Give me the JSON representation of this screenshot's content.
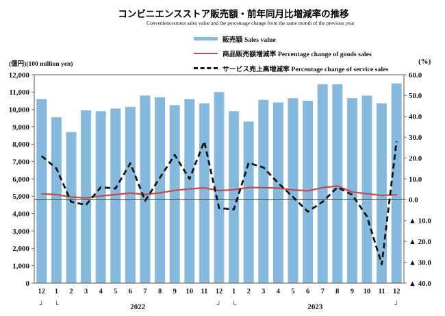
{
  "chart_data": {
    "type": "combo-bar-line",
    "title": "コンビニエンスストア販売額・前年同月比増減率の推移",
    "subtitle": "Conveniencestores sales value and the percentage change from the same month of the previous year",
    "categories": [
      "12",
      "1",
      "2",
      "3",
      "4",
      "5",
      "6",
      "7",
      "8",
      "9",
      "10",
      "11",
      "12",
      "1",
      "2",
      "3",
      "4",
      "5",
      "6",
      "7",
      "8",
      "9",
      "10",
      "11",
      "12"
    ],
    "series": [
      {
        "name": "販売額 Sales value",
        "type": "bar",
        "axis": "left",
        "unit": "100 million yen",
        "color": "#85b9dd",
        "values": [
          10600,
          9550,
          8700,
          9950,
          9900,
          10050,
          10150,
          10800,
          10700,
          10250,
          10600,
          10350,
          11000,
          9900,
          9300,
          10550,
          10400,
          10650,
          10500,
          11450,
          11450,
          10650,
          10800,
          10350,
          11500
        ]
      },
      {
        "name": "商品販売額増減率 Percentage change of goods sales",
        "type": "line",
        "axis": "right",
        "unit": "%",
        "color": "#c0504d",
        "values": [
          2.8,
          2.5,
          1.3,
          0.9,
          1.8,
          2.5,
          3.2,
          2.5,
          3.3,
          4.5,
          5.2,
          5.7,
          4.4,
          4.8,
          5.9,
          5.8,
          5.6,
          4.7,
          4.3,
          5.8,
          6.6,
          3.7,
          2.9,
          2.1,
          2.4
        ]
      },
      {
        "name": "サービス売上高増減率 Percentage change of service sales",
        "type": "dashed-line",
        "axis": "right",
        "unit": "%",
        "color": "#141414",
        "values": [
          21,
          15,
          -1,
          -2.5,
          6,
          5.4,
          17.5,
          -0.5,
          10.6,
          21.5,
          10,
          28,
          -4,
          -4.6,
          17.7,
          15.5,
          8,
          1.3,
          -5.7,
          -1,
          6,
          2.4,
          -8,
          -31,
          28
        ]
      }
    ],
    "left_axis": {
      "label": "(億円)(100 million yen)",
      "min": 0,
      "max": 12000,
      "step": 1000,
      "tick_labels": [
        "0",
        "1,000",
        "2,000",
        "3,000",
        "4,000",
        "5,000",
        "6,000",
        "7,000",
        "8,000",
        "9,000",
        "10,000",
        "11,000",
        "12,000"
      ]
    },
    "right_axis": {
      "label": "(%)",
      "min": -40,
      "max": 60,
      "step": 10,
      "ticks": [
        {
          "v": 60,
          "label": "60.0"
        },
        {
          "v": 50,
          "label": "50.0"
        },
        {
          "v": 40,
          "label": "40.0"
        },
        {
          "v": 30,
          "label": "30.0"
        },
        {
          "v": 20,
          "label": "20.0"
        },
        {
          "v": 10,
          "label": "10.0"
        },
        {
          "v": 0,
          "label": "0.0"
        },
        {
          "v": -10,
          "label": "▲ 10.0"
        },
        {
          "v": -20,
          "label": "▲ 20.0"
        },
        {
          "v": -30,
          "label": "▲ 30.0"
        },
        {
          "v": -40,
          "label": "▲ 40.0"
        }
      ]
    },
    "x_axis": {
      "bracket_open_glyph": "└",
      "bracket_close_glyph": "┘",
      "year_row": [
        {
          "type": "bracket-close",
          "at": 0
        },
        {
          "type": "bracket-open",
          "at": 1
        },
        {
          "type": "year",
          "label": "2022",
          "from": 1,
          "to": 12
        },
        {
          "type": "bracket-close",
          "at": 12
        },
        {
          "type": "bracket-open",
          "at": 13
        },
        {
          "type": "year",
          "label": "2023",
          "from": 13,
          "to": 24
        },
        {
          "type": "bracket-close",
          "at": 24
        }
      ]
    },
    "baseline_value": 0,
    "grid": false,
    "legend_position": "top"
  },
  "legend": {
    "items": [
      {
        "label": "販売額 Sales value",
        "swatch": "bar",
        "color": "#85b9dd"
      },
      {
        "label": "商品販売額増減率 Percentage change of goods sales",
        "swatch": "line",
        "color": "#c0504d"
      },
      {
        "label": "サービス売上高増減率 Percentage change of service sales",
        "swatch": "dashed-line",
        "color": "#141414"
      }
    ]
  }
}
